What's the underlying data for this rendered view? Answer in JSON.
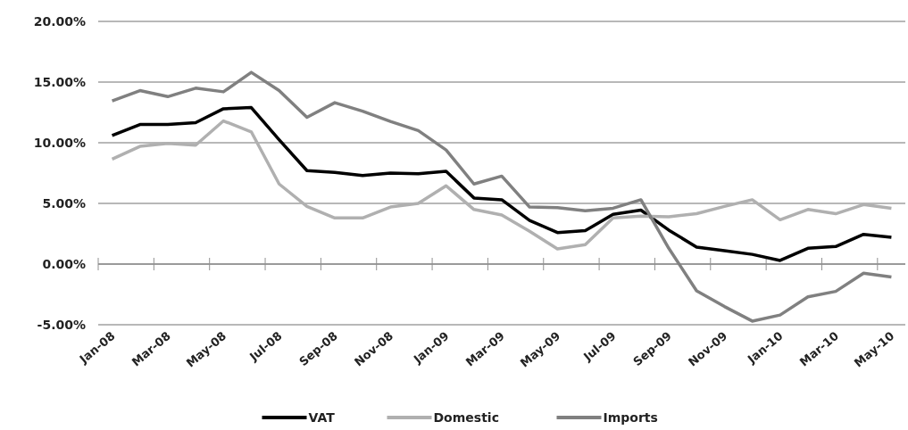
{
  "chart_data": {
    "type": "line",
    "categories": [
      "Jan-08",
      null,
      "Mar-08",
      null,
      "May-08",
      null,
      "Jul-08",
      null,
      "Sep-08",
      null,
      "Nov-08",
      null,
      "Jan-09",
      null,
      "Mar-09",
      null,
      "May-09",
      null,
      "Jul-09",
      null,
      "Sep-09",
      null,
      "Nov-09",
      null,
      "Jan-10",
      null,
      "Mar-10",
      null,
      "May-10"
    ],
    "series": [
      {
        "name": "VAT",
        "color": "#000000",
        "values": [
          10.6,
          11.5,
          11.5,
          11.65,
          12.8,
          12.9,
          10.25,
          7.7,
          7.55,
          7.3,
          7.5,
          7.45,
          7.65,
          5.45,
          5.3,
          3.6,
          2.6,
          2.75,
          4.1,
          4.45,
          2.8,
          1.4,
          1.1,
          0.8,
          0.3,
          1.3,
          1.45,
          2.45,
          2.2
        ]
      },
      {
        "name": "Domestic",
        "color": "#b0b0b0",
        "values": [
          8.65,
          9.7,
          9.95,
          9.8,
          11.8,
          10.9,
          6.6,
          4.75,
          3.8,
          3.8,
          4.7,
          5.0,
          6.45,
          4.5,
          4.05,
          2.7,
          1.25,
          1.6,
          3.8,
          3.95,
          3.9,
          4.15,
          4.75,
          5.3,
          3.65,
          4.5,
          4.15,
          4.9,
          4.6
        ]
      },
      {
        "name": "Imports",
        "color": "#808080",
        "values": [
          13.45,
          14.3,
          13.8,
          14.5,
          14.2,
          15.8,
          14.3,
          12.1,
          13.3,
          12.6,
          11.75,
          11.0,
          9.4,
          6.6,
          7.25,
          4.7,
          4.65,
          4.4,
          4.6,
          5.3,
          1.3,
          -2.2,
          -3.5,
          -4.7,
          -4.2,
          -2.7,
          -2.25,
          -0.75,
          -1.07
        ]
      }
    ],
    "ylim": [
      -5,
      20
    ],
    "yticks": [
      {
        "value": -5,
        "label": "-5.00%"
      },
      {
        "value": 0,
        "label": "0.00%"
      },
      {
        "value": 5,
        "label": "5.00%"
      },
      {
        "value": 10,
        "label": "10.00%"
      },
      {
        "value": 15,
        "label": "15.00%"
      },
      {
        "value": 20,
        "label": "20.00%"
      }
    ],
    "grid": "y",
    "legend": "bottom",
    "marker": "none",
    "line_style": "solid"
  }
}
